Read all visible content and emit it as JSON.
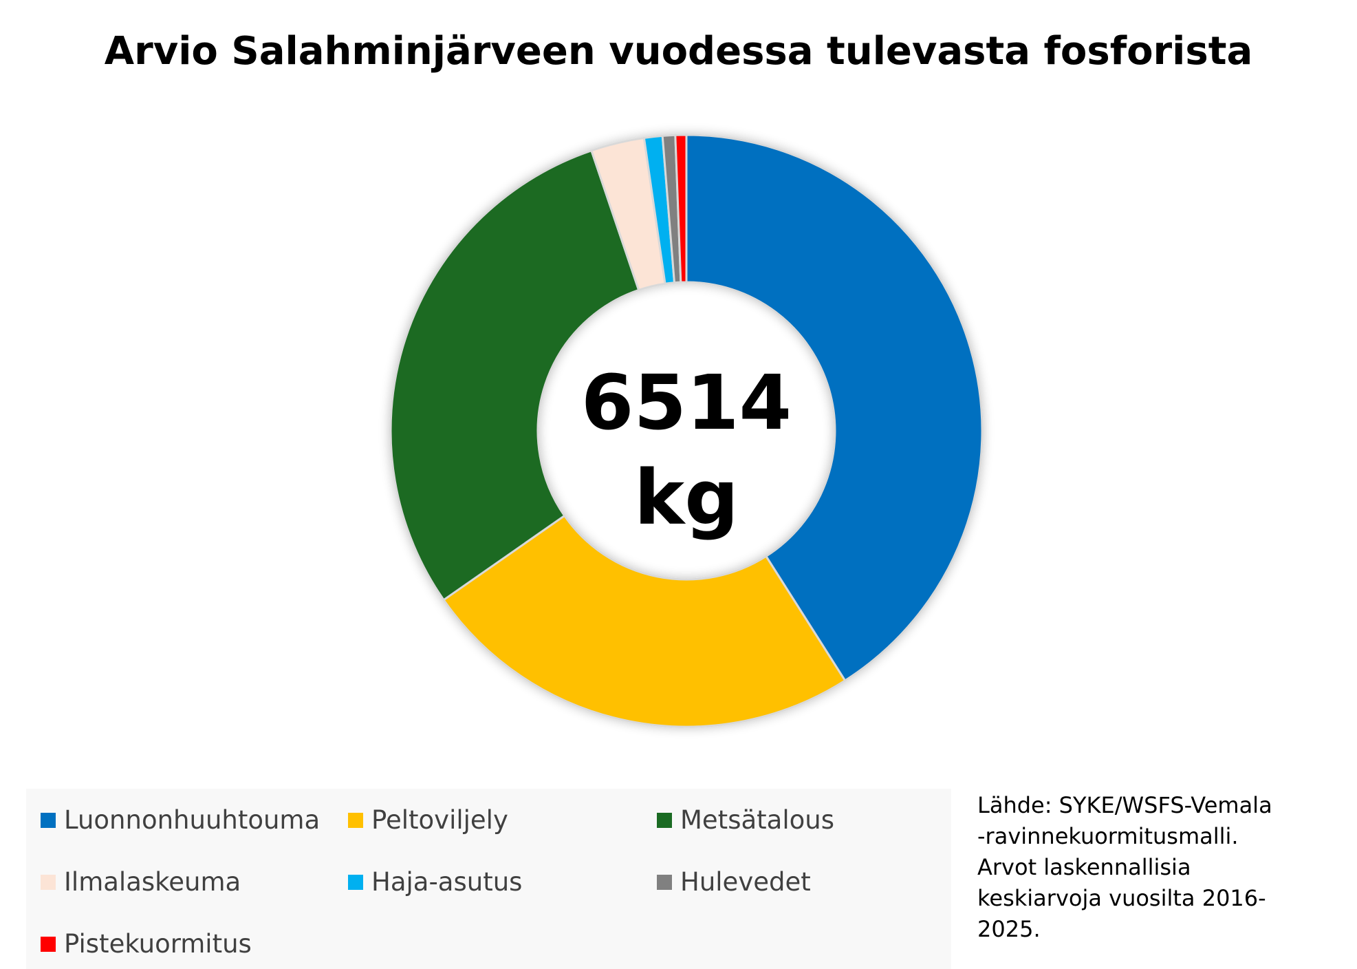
{
  "title": "Arvio Salahminjärveen vuodessa tulevasta fosforista",
  "center_label": {
    "value": "6514",
    "unit": "kg"
  },
  "source_lines": [
    "Lähde: SYKE/WSFS-Vemala",
    "-ravinnekuormitusmalli.",
    "Arvot laskennallisia",
    "keskiarvoja vuosilta 2016-",
    "2025."
  ],
  "chart_data": {
    "type": "pie",
    "subtype": "donut",
    "title": "Arvio Salahminjärveen vuodessa tulevasta fosforista",
    "total": 6514,
    "unit": "kg",
    "legend_position": "bottom",
    "categories": [
      "Luonnonhuuhtouma",
      "Peltoviljely",
      "Metsätalous",
      "Ilmalaskeuma",
      "Haja-asutus",
      "Hulevedet",
      "Pistekuormitus"
    ],
    "values": [
      2670,
      1585,
      1920,
      190,
      65,
      45,
      39
    ],
    "colors": [
      "#0070C0",
      "#FFC000",
      "#1B6B23",
      "#FCE4D6",
      "#00B0F0",
      "#808080",
      "#FF0000"
    ]
  }
}
